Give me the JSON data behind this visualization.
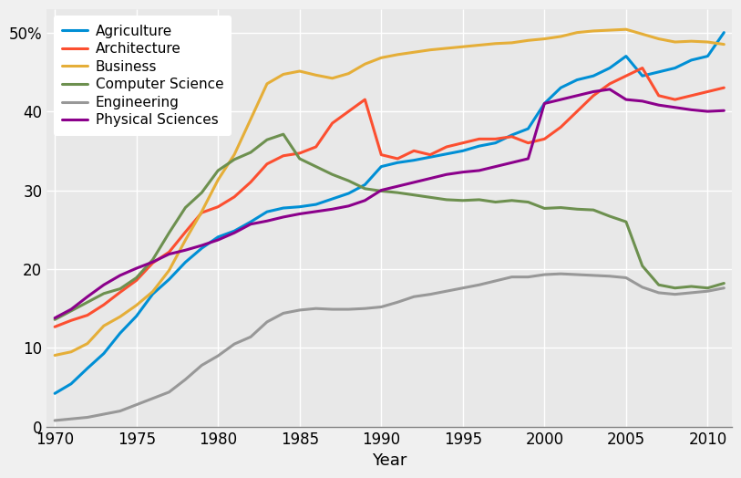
{
  "title": "",
  "xlabel": "Year",
  "ylabel": "",
  "background_color": "#e8e8e8",
  "grid_color": "#ffffff",
  "series": {
    "Agriculture": {
      "color": "#008fd5",
      "data": {
        "1970": 4.229798,
        "1971": 5.452797,
        "1972": 7.420901,
        "1973": 9.295429,
        "1974": 11.876954,
        "1975": 14.037092,
        "1976": 16.840483,
        "1977": 18.691382,
        "1978": 20.872287,
        "1979": 22.642016,
        "1980": 24.070769,
        "1981": 24.831001,
        "1982": 25.988534,
        "1983": 27.267197,
        "1984": 27.744026,
        "1985": 27.9,
        "1986": 28.2,
        "1987": 28.9,
        "1988": 29.6,
        "1989": 30.7,
        "1990": 33.0,
        "1991": 33.5,
        "1992": 33.8,
        "1993": 34.2,
        "1994": 34.6,
        "1995": 35.0,
        "1996": 35.6,
        "1997": 36.0,
        "1998": 37.0,
        "1999": 37.8,
        "2000": 41.0,
        "2001": 43.0,
        "2002": 44.0,
        "2003": 44.5,
        "2004": 45.5,
        "2005": 47.0,
        "2006": 44.5,
        "2007": 45.0,
        "2008": 45.5,
        "2009": 46.5,
        "2010": 47.0,
        "2011": 50.0
      }
    },
    "Architecture": {
      "color": "#fc4f30",
      "data": {
        "1970": 12.67958,
        "1971": 13.48882,
        "1972": 14.15215,
        "1973": 15.4715,
        "1974": 17.06429,
        "1975": 18.57189,
        "1976": 20.78542,
        "1977": 22.15412,
        "1978": 24.69942,
        "1979": 27.15468,
        "1980": 27.89703,
        "1981": 29.158,
        "1982": 31.03106,
        "1983": 33.33006,
        "1984": 34.37077,
        "1985": 34.6962,
        "1986": 35.5,
        "1987": 38.5,
        "1988": 40.0,
        "1989": 41.5,
        "1990": 34.5,
        "1991": 34.0,
        "1992": 35.0,
        "1993": 34.5,
        "1994": 35.5,
        "1995": 36.0,
        "1996": 36.5,
        "1997": 36.5,
        "1998": 36.8,
        "1999": 36.0,
        "2000": 36.5,
        "2001": 38.0,
        "2002": 40.0,
        "2003": 42.0,
        "2004": 43.5,
        "2005": 44.5,
        "2006": 45.5,
        "2007": 42.0,
        "2008": 41.5,
        "2009": 42.0,
        "2010": 42.5,
        "2011": 43.0
      }
    },
    "Business": {
      "color": "#e5ae38",
      "data": {
        "1970": 9.064475,
        "1971": 9.503187,
        "1972": 10.558962,
        "1973": 12.804195,
        "1974": 13.963896,
        "1975": 15.413947,
        "1976": 17.150213,
        "1977": 19.83177,
        "1978": 23.680413,
        "1979": 27.285237,
        "1980": 31.31522,
        "1981": 34.530745,
        "1982": 39.003429,
        "1983": 43.5,
        "1984": 44.7,
        "1985": 45.1,
        "1986": 44.6,
        "1987": 44.2,
        "1988": 44.8,
        "1989": 46.0,
        "1990": 46.8,
        "1991": 47.2,
        "1992": 47.5,
        "1993": 47.8,
        "1994": 48.0,
        "1995": 48.2,
        "1996": 48.4,
        "1997": 48.6,
        "1998": 48.7,
        "1999": 49.0,
        "2000": 49.2,
        "2001": 49.5,
        "2002": 50.0,
        "2003": 50.2,
        "2004": 50.3,
        "2005": 50.4,
        "2006": 49.8,
        "2007": 49.2,
        "2008": 48.8,
        "2009": 48.9,
        "2010": 48.8,
        "2011": 48.5
      }
    },
    "Computer Science": {
      "color": "#6d904f",
      "data": {
        "1970": 13.6,
        "1971": 14.7,
        "1972": 15.8,
        "1973": 16.9,
        "1974": 17.5,
        "1975": 18.9,
        "1976": 21.2,
        "1977": 24.6,
        "1978": 27.8,
        "1979": 29.7,
        "1980": 32.5,
        "1981": 33.9,
        "1982": 34.8,
        "1983": 36.4,
        "1984": 37.1,
        "1985": 34.0,
        "1986": 33.0,
        "1987": 32.0,
        "1988": 31.2,
        "1989": 30.2,
        "1990": 29.9,
        "1991": 29.7,
        "1992": 29.4,
        "1993": 29.1,
        "1994": 28.8,
        "1995": 28.7,
        "1996": 28.8,
        "1997": 28.5,
        "1998": 28.7,
        "1999": 28.5,
        "2000": 27.7,
        "2001": 27.8,
        "2002": 27.6,
        "2003": 27.5,
        "2004": 26.7,
        "2005": 26.0,
        "2006": 20.4,
        "2007": 18.0,
        "2008": 17.6,
        "2009": 17.8,
        "2010": 17.6,
        "2011": 18.2
      }
    },
    "Engineering": {
      "color": "#989898",
      "data": {
        "1970": 0.8,
        "1971": 1.0,
        "1972": 1.2,
        "1973": 1.6,
        "1974": 2.0,
        "1975": 2.8,
        "1976": 3.6,
        "1977": 4.4,
        "1978": 6.0,
        "1979": 7.8,
        "1980": 9.0,
        "1981": 10.5,
        "1982": 11.4,
        "1983": 13.3,
        "1984": 14.4,
        "1985": 14.8,
        "1986": 15.0,
        "1987": 14.9,
        "1988": 14.9,
        "1989": 15.0,
        "1990": 15.2,
        "1991": 15.8,
        "1992": 16.5,
        "1993": 16.8,
        "1994": 17.2,
        "1995": 17.6,
        "1996": 18.0,
        "1997": 18.5,
        "1998": 19.0,
        "1999": 19.0,
        "2000": 19.3,
        "2001": 19.4,
        "2002": 19.3,
        "2003": 19.2,
        "2004": 19.1,
        "2005": 18.9,
        "2006": 17.7,
        "2007": 17.0,
        "2008": 16.8,
        "2009": 17.0,
        "2010": 17.2,
        "2011": 17.6
      }
    },
    "Physical Sciences": {
      "color": "#8b008b",
      "data": {
        "1970": 13.8,
        "1971": 14.9,
        "1972": 16.5,
        "1973": 18.0,
        "1974": 19.2,
        "1975": 20.1,
        "1976": 20.9,
        "1977": 21.9,
        "1978": 22.4,
        "1979": 23.0,
        "1980": 23.7,
        "1981": 24.6,
        "1982": 25.7,
        "1983": 26.1,
        "1984": 26.6,
        "1985": 27.0,
        "1986": 27.3,
        "1987": 27.6,
        "1988": 28.0,
        "1989": 28.7,
        "1990": 30.0,
        "1991": 30.5,
        "1992": 31.0,
        "1993": 31.5,
        "1994": 32.0,
        "1995": 32.3,
        "1996": 32.5,
        "1997": 33.0,
        "1998": 33.5,
        "1999": 34.0,
        "2000": 41.0,
        "2001": 41.5,
        "2002": 42.0,
        "2003": 42.5,
        "2004": 42.8,
        "2005": 41.5,
        "2006": 41.3,
        "2007": 40.8,
        "2008": 40.5,
        "2009": 40.2,
        "2010": 40.0,
        "2011": 40.1
      }
    }
  },
  "ylim": [
    0,
    53
  ],
  "yticks": [
    0,
    10,
    20,
    30,
    40,
    50
  ],
  "ytick_labels": [
    "0",
    "10",
    "20",
    "30",
    "40",
    "50%"
  ],
  "xlim": [
    1969.5,
    2011.5
  ],
  "xticks": [
    1970,
    1975,
    1980,
    1985,
    1990,
    1995,
    2000,
    2005,
    2010
  ],
  "linewidth": 2.2,
  "legend_fontsize": 11,
  "tick_fontsize": 12,
  "xlabel_fontsize": 13
}
